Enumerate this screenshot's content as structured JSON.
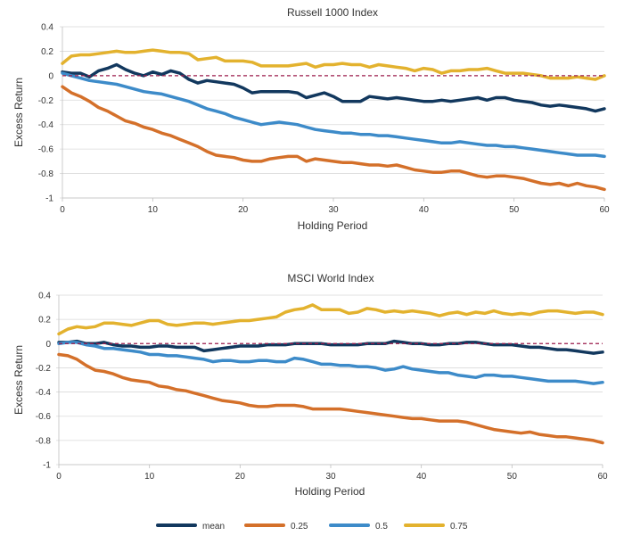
{
  "chart_data": [
    {
      "type": "line",
      "title": "Russell 1000 Index",
      "xlabel": "Holding Period",
      "ylabel": "Excess Return",
      "xlim": [
        0,
        60
      ],
      "ylim": [
        -1,
        0.4
      ],
      "xticks": [
        "0",
        "10",
        "20",
        "30",
        "40",
        "50",
        "60"
      ],
      "yticks": [
        "0.4",
        "0.2",
        "0",
        "-0.2",
        "-0.4",
        "-0.6",
        "-0.8",
        "-1"
      ],
      "grid": true,
      "zero_line": true,
      "x": [
        0,
        1,
        2,
        3,
        4,
        5,
        6,
        7,
        8,
        9,
        10,
        11,
        12,
        13,
        14,
        15,
        16,
        17,
        18,
        19,
        20,
        21,
        22,
        23,
        24,
        25,
        26,
        27,
        28,
        29,
        30,
        31,
        32,
        33,
        34,
        35,
        36,
        37,
        38,
        39,
        40,
        41,
        42,
        43,
        44,
        45,
        46,
        47,
        48,
        49,
        50,
        51,
        52,
        53,
        54,
        55,
        56,
        57,
        58,
        59,
        60
      ],
      "series": [
        {
          "name": "mean",
          "color": "#12385e",
          "values": [
            0.03,
            0.02,
            0.02,
            -0.01,
            0.04,
            0.06,
            0.09,
            0.05,
            0.02,
            0.0,
            0.03,
            0.01,
            0.04,
            0.02,
            -0.03,
            -0.06,
            -0.04,
            -0.05,
            -0.06,
            -0.07,
            -0.1,
            -0.14,
            -0.13,
            -0.13,
            -0.13,
            -0.13,
            -0.14,
            -0.18,
            -0.16,
            -0.14,
            -0.17,
            -0.21,
            -0.21,
            -0.21,
            -0.17,
            -0.18,
            -0.19,
            -0.18,
            -0.19,
            -0.2,
            -0.21,
            -0.21,
            -0.2,
            -0.21,
            -0.2,
            -0.19,
            -0.18,
            -0.2,
            -0.18,
            -0.18,
            -0.2,
            -0.21,
            -0.22,
            -0.24,
            -0.25,
            -0.24,
            -0.25,
            -0.26,
            -0.27,
            -0.29,
            -0.27
          ]
        },
        {
          "name": "0.25",
          "color": "#d4702a",
          "values": [
            -0.09,
            -0.14,
            -0.17,
            -0.21,
            -0.26,
            -0.29,
            -0.33,
            -0.37,
            -0.39,
            -0.42,
            -0.44,
            -0.47,
            -0.49,
            -0.52,
            -0.55,
            -0.58,
            -0.62,
            -0.65,
            -0.66,
            -0.67,
            -0.69,
            -0.7,
            -0.7,
            -0.68,
            -0.67,
            -0.66,
            -0.66,
            -0.7,
            -0.68,
            -0.69,
            -0.7,
            -0.71,
            -0.71,
            -0.72,
            -0.73,
            -0.73,
            -0.74,
            -0.73,
            -0.75,
            -0.77,
            -0.78,
            -0.79,
            -0.79,
            -0.78,
            -0.78,
            -0.8,
            -0.82,
            -0.83,
            -0.82,
            -0.82,
            -0.83,
            -0.84,
            -0.86,
            -0.88,
            -0.89,
            -0.88,
            -0.9,
            -0.88,
            -0.9,
            -0.91,
            -0.93
          ]
        },
        {
          "name": "0.5",
          "color": "#3d8bc9",
          "values": [
            0.02,
            0.0,
            -0.02,
            -0.04,
            -0.05,
            -0.06,
            -0.07,
            -0.09,
            -0.11,
            -0.13,
            -0.14,
            -0.15,
            -0.17,
            -0.19,
            -0.21,
            -0.24,
            -0.27,
            -0.29,
            -0.31,
            -0.34,
            -0.36,
            -0.38,
            -0.4,
            -0.39,
            -0.38,
            -0.39,
            -0.4,
            -0.42,
            -0.44,
            -0.45,
            -0.46,
            -0.47,
            -0.47,
            -0.48,
            -0.48,
            -0.49,
            -0.49,
            -0.5,
            -0.51,
            -0.52,
            -0.53,
            -0.54,
            -0.55,
            -0.55,
            -0.54,
            -0.55,
            -0.56,
            -0.57,
            -0.57,
            -0.58,
            -0.58,
            -0.59,
            -0.6,
            -0.61,
            -0.62,
            -0.63,
            -0.64,
            -0.65,
            -0.65,
            -0.65,
            -0.66
          ]
        },
        {
          "name": "0.75",
          "color": "#e3b22e",
          "values": [
            0.1,
            0.16,
            0.17,
            0.17,
            0.18,
            0.19,
            0.2,
            0.19,
            0.19,
            0.2,
            0.21,
            0.2,
            0.19,
            0.19,
            0.18,
            0.13,
            0.14,
            0.15,
            0.12,
            0.12,
            0.12,
            0.11,
            0.08,
            0.08,
            0.08,
            0.08,
            0.09,
            0.1,
            0.07,
            0.09,
            0.09,
            0.1,
            0.09,
            0.09,
            0.07,
            0.09,
            0.08,
            0.07,
            0.06,
            0.04,
            0.06,
            0.05,
            0.02,
            0.04,
            0.04,
            0.05,
            0.05,
            0.06,
            0.04,
            0.02,
            0.02,
            0.02,
            0.01,
            0.0,
            -0.02,
            -0.02,
            -0.02,
            -0.01,
            -0.02,
            -0.03,
            0.0
          ]
        }
      ]
    },
    {
      "type": "line",
      "title": "MSCI World Index",
      "xlabel": "Holding Period",
      "ylabel": "Excess Return",
      "xlim": [
        0,
        60
      ],
      "ylim": [
        -1,
        0.4
      ],
      "xticks": [
        "0",
        "10",
        "20",
        "30",
        "40",
        "50",
        "60"
      ],
      "yticks": [
        "0.4",
        "0.2",
        "0",
        "-0.2",
        "-0.4",
        "-0.6",
        "-0.8",
        "-1"
      ],
      "grid": true,
      "zero_line": true,
      "x": [
        0,
        1,
        2,
        3,
        4,
        5,
        6,
        7,
        8,
        9,
        10,
        11,
        12,
        13,
        14,
        15,
        16,
        17,
        18,
        19,
        20,
        21,
        22,
        23,
        24,
        25,
        26,
        27,
        28,
        29,
        30,
        31,
        32,
        33,
        34,
        35,
        36,
        37,
        38,
        39,
        40,
        41,
        42,
        43,
        44,
        45,
        46,
        47,
        48,
        49,
        50,
        51,
        52,
        53,
        54,
        55,
        56,
        57,
        58,
        59,
        60
      ],
      "series": [
        {
          "name": "mean",
          "color": "#12385e",
          "values": [
            0.01,
            0.01,
            0.02,
            0.0,
            0.0,
            0.01,
            -0.01,
            -0.02,
            -0.02,
            -0.03,
            -0.03,
            -0.02,
            -0.02,
            -0.03,
            -0.03,
            -0.03,
            -0.06,
            -0.05,
            -0.04,
            -0.03,
            -0.02,
            -0.02,
            -0.02,
            -0.01,
            -0.01,
            -0.01,
            0.0,
            0.0,
            0.0,
            0.0,
            -0.01,
            -0.01,
            -0.01,
            -0.01,
            0.0,
            0.0,
            0.0,
            0.02,
            0.01,
            0.0,
            0.0,
            -0.01,
            -0.01,
            0.0,
            0.0,
            0.01,
            0.01,
            0.0,
            -0.01,
            -0.01,
            -0.01,
            -0.02,
            -0.03,
            -0.03,
            -0.04,
            -0.05,
            -0.05,
            -0.06,
            -0.07,
            -0.08,
            -0.07
          ]
        },
        {
          "name": "0.25",
          "color": "#d4702a",
          "values": [
            -0.09,
            -0.1,
            -0.13,
            -0.18,
            -0.22,
            -0.23,
            -0.25,
            -0.28,
            -0.3,
            -0.31,
            -0.32,
            -0.35,
            -0.36,
            -0.38,
            -0.39,
            -0.41,
            -0.43,
            -0.45,
            -0.47,
            -0.48,
            -0.49,
            -0.51,
            -0.52,
            -0.52,
            -0.51,
            -0.51,
            -0.51,
            -0.52,
            -0.54,
            -0.54,
            -0.54,
            -0.54,
            -0.55,
            -0.56,
            -0.57,
            -0.58,
            -0.59,
            -0.6,
            -0.61,
            -0.62,
            -0.62,
            -0.63,
            -0.64,
            -0.64,
            -0.64,
            -0.65,
            -0.67,
            -0.69,
            -0.71,
            -0.72,
            -0.73,
            -0.74,
            -0.73,
            -0.75,
            -0.76,
            -0.77,
            -0.77,
            -0.78,
            -0.79,
            -0.8,
            -0.82
          ]
        },
        {
          "name": "0.5",
          "color": "#3d8bc9",
          "values": [
            0.0,
            0.01,
            0.01,
            -0.01,
            -0.02,
            -0.04,
            -0.04,
            -0.05,
            -0.06,
            -0.07,
            -0.09,
            -0.09,
            -0.1,
            -0.1,
            -0.11,
            -0.12,
            -0.13,
            -0.15,
            -0.14,
            -0.14,
            -0.15,
            -0.15,
            -0.14,
            -0.14,
            -0.15,
            -0.15,
            -0.12,
            -0.13,
            -0.15,
            -0.17,
            -0.17,
            -0.18,
            -0.18,
            -0.19,
            -0.19,
            -0.2,
            -0.22,
            -0.21,
            -0.19,
            -0.21,
            -0.22,
            -0.23,
            -0.24,
            -0.24,
            -0.26,
            -0.27,
            -0.28,
            -0.26,
            -0.26,
            -0.27,
            -0.27,
            -0.28,
            -0.29,
            -0.3,
            -0.31,
            -0.31,
            -0.31,
            -0.31,
            -0.32,
            -0.33,
            -0.32
          ]
        },
        {
          "name": "0.75",
          "color": "#e3b22e",
          "values": [
            0.08,
            0.12,
            0.14,
            0.13,
            0.14,
            0.17,
            0.17,
            0.16,
            0.15,
            0.17,
            0.19,
            0.19,
            0.16,
            0.15,
            0.16,
            0.17,
            0.17,
            0.16,
            0.17,
            0.18,
            0.19,
            0.19,
            0.2,
            0.21,
            0.22,
            0.26,
            0.28,
            0.29,
            0.32,
            0.28,
            0.28,
            0.28,
            0.25,
            0.26,
            0.29,
            0.28,
            0.26,
            0.27,
            0.26,
            0.27,
            0.26,
            0.25,
            0.23,
            0.25,
            0.26,
            0.24,
            0.26,
            0.25,
            0.27,
            0.25,
            0.24,
            0.25,
            0.24,
            0.26,
            0.27,
            0.27,
            0.26,
            0.25,
            0.26,
            0.26,
            0.24
          ]
        }
      ]
    }
  ],
  "legend": [
    {
      "label": "mean",
      "color": "#12385e"
    },
    {
      "label": "0.25",
      "color": "#d4702a"
    },
    {
      "label": "0.5",
      "color": "#3d8bc9"
    },
    {
      "label": "0.75",
      "color": "#e3b22e"
    }
  ]
}
